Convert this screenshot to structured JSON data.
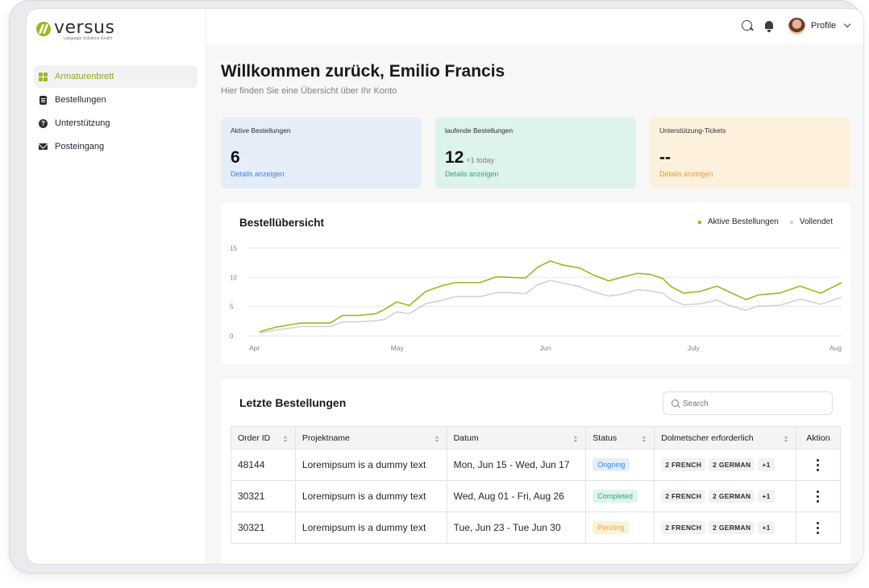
{
  "brand": {
    "name": "versus",
    "subtitle": "Language Solutions GmbH",
    "accent": "#9ab81f"
  },
  "sidebar": {
    "items": [
      {
        "label": "Armaturenbrett",
        "icon": "dashboard-grid-icon",
        "active": true
      },
      {
        "label": "Bestellungen",
        "icon": "document-icon",
        "active": false
      },
      {
        "label": "Unterstützung",
        "icon": "help-icon",
        "active": false
      },
      {
        "label": "Posteingang",
        "icon": "mail-icon",
        "active": false
      }
    ]
  },
  "topbar": {
    "profile_label": "Profile",
    "icons": [
      "search-icon",
      "bell-icon",
      "avatar",
      "chevron-down-icon"
    ]
  },
  "header": {
    "title": "Willkommen zurück, Emilio Francis",
    "subtitle": "Hier finden Sie eine Übersicht über Ihr Konto"
  },
  "stats": [
    {
      "label": "Aktive Bestellungen",
      "value": "6",
      "extra": "",
      "link": "Details anzeigen",
      "color": "#e5edf9"
    },
    {
      "label": "laufende Bestellungen",
      "value": "12",
      "extra": "+1 today",
      "link": "Details anzeigen",
      "color": "#ddf3ec"
    },
    {
      "label": "Unterstützung-Tickets",
      "value": "--",
      "extra": "",
      "link": "Details anzeigen",
      "color": "#fdf0dd"
    }
  ],
  "overview": {
    "title": "Bestellübersicht",
    "legend": [
      {
        "name": "Aktive Bestellungen",
        "color": "#9ab81f"
      },
      {
        "name": "Vollendet",
        "color": "#cfd2d6"
      }
    ]
  },
  "chart_data": {
    "type": "line",
    "title": "Bestellübersicht",
    "xlabel": "",
    "ylabel": "",
    "ylim": [
      0,
      15
    ],
    "yticks": [
      0,
      5,
      10,
      15
    ],
    "xticks": [
      "Apr",
      "May",
      "Jun",
      "July",
      "Aug"
    ],
    "grid": true,
    "legend_position": "top-right",
    "x": [
      0,
      0.2,
      0.5,
      0.7,
      0.85,
      1.0,
      1.2,
      1.4,
      1.5,
      1.65,
      1.8,
      2.0,
      2.2,
      2.35,
      2.5,
      2.65,
      2.85,
      3.0,
      3.2,
      3.35,
      3.5,
      3.65,
      3.85,
      4.0,
      4.2,
      4.35,
      4.55,
      4.7,
      4.85,
      4.95,
      5.1,
      5.3,
      5.5,
      5.65,
      5.85,
      6.0,
      6.25,
      6.5,
      6.75,
      7.0
    ],
    "series": [
      {
        "name": "Aktive Bestellungen",
        "color": "#9ab81f",
        "values": [
          0.7,
          1.5,
          2.2,
          2.2,
          2.2,
          3.5,
          3.5,
          3.8,
          4.5,
          5.8,
          5.2,
          7.6,
          8.6,
          9.1,
          9.1,
          9.1,
          10.1,
          10.0,
          9.9,
          11.8,
          12.8,
          12.1,
          11.6,
          10.5,
          9.4,
          10.0,
          10.7,
          10.5,
          9.8,
          8.4,
          7.3,
          7.6,
          8.5,
          7.5,
          6.2,
          7.0,
          7.3,
          8.5,
          7.3,
          9.1
        ]
      },
      {
        "name": "Vollendet",
        "color": "#cfd2d6",
        "values": [
          0.5,
          1.0,
          1.6,
          1.6,
          1.6,
          2.4,
          2.4,
          2.6,
          2.8,
          4.1,
          3.8,
          5.5,
          6.1,
          6.7,
          6.7,
          6.7,
          7.4,
          7.4,
          7.2,
          8.8,
          9.5,
          9.0,
          8.4,
          7.6,
          6.8,
          7.1,
          7.9,
          7.7,
          7.3,
          6.2,
          5.3,
          5.5,
          6.1,
          5.2,
          4.4,
          5.1,
          5.2,
          6.3,
          5.4,
          6.6
        ]
      }
    ]
  },
  "orders": {
    "title": "Letzte Bestellungen",
    "search_placeholder": "Search",
    "columns": [
      "Order ID",
      "Projektname",
      "Datum",
      "Status",
      "Dolmetscher erforderlich",
      "Aktion"
    ],
    "rows": [
      {
        "id": "48144",
        "project": "Loremipsum is a dummy text",
        "date": "Mon, Jun 15 - Wed, Jun 17",
        "status": "Ongoing",
        "status_class": "b-ongoing",
        "tags": [
          "2 FRENCH",
          "2 GERMAN",
          "+1"
        ]
      },
      {
        "id": "30321",
        "project": "Loremipsum is a dummy text",
        "date": "Wed, Aug 01 - Fri, Aug 26",
        "status": "Completed",
        "status_class": "b-completed",
        "tags": [
          "2 FRENCH",
          "2 GERMAN",
          "+1"
        ]
      },
      {
        "id": "30321",
        "project": "Loremipsum is a dummy text",
        "date": "Tue, Jun 23 - Tue Jun 30",
        "status": "Pending",
        "status_class": "b-pending",
        "tags": [
          "2 FRENCH",
          "2 GERMAN",
          "+1"
        ]
      }
    ]
  }
}
